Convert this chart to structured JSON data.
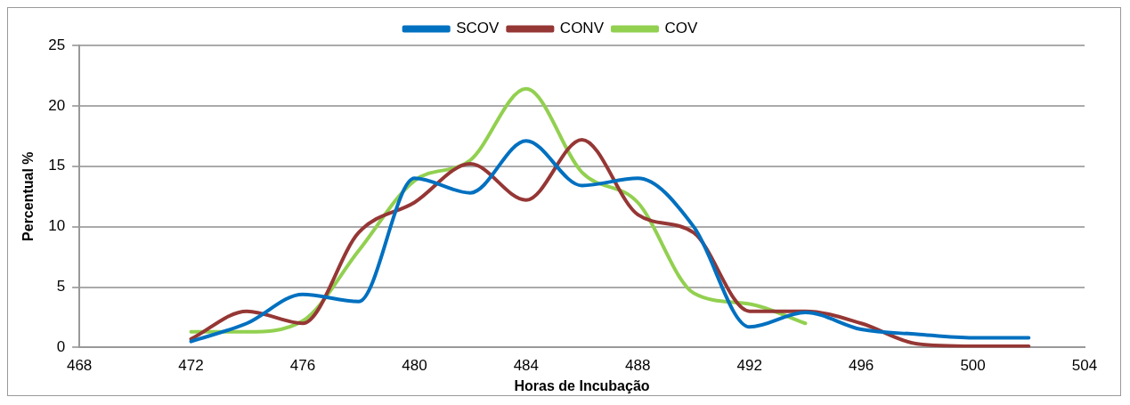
{
  "chart_data": {
    "type": "line",
    "xlabel": "Horas de Incubação",
    "ylabel": "Percentual %",
    "x": [
      472,
      474,
      476,
      478,
      480,
      482,
      484,
      486,
      488,
      490,
      492,
      494,
      496,
      498,
      500,
      502
    ],
    "series": [
      {
        "name": "SCOV",
        "color": "#0070c0",
        "values": [
          0.5,
          2,
          4.4,
          3.8,
          14,
          12.8,
          17.1,
          13.4,
          14,
          10,
          1.7,
          2.9,
          1.5,
          1.1,
          0.8,
          0.8
        ]
      },
      {
        "name": "CONV",
        "color": "#953735",
        "values": [
          0.7,
          3,
          2,
          9.5,
          12,
          15.2,
          12.2,
          17.2,
          11,
          9.5,
          3,
          3,
          2,
          0.3,
          0.1,
          0.1
        ]
      },
      {
        "name": "COV",
        "color": "#92d050",
        "values": [
          1.3,
          1.3,
          2.2,
          8,
          13.8,
          15.5,
          21.4,
          14.5,
          12,
          4.5,
          3.6,
          2.0,
          null,
          null,
          null,
          null
        ]
      }
    ],
    "xlim": [
      468,
      504
    ],
    "xticks": [
      468,
      472,
      476,
      480,
      484,
      488,
      492,
      496,
      500,
      504
    ],
    "ylim": [
      0,
      25
    ],
    "yticks": [
      0,
      5,
      10,
      15,
      20,
      25
    ],
    "grid": "y",
    "legend": "top",
    "marker": "none",
    "line_style": "solid"
  }
}
